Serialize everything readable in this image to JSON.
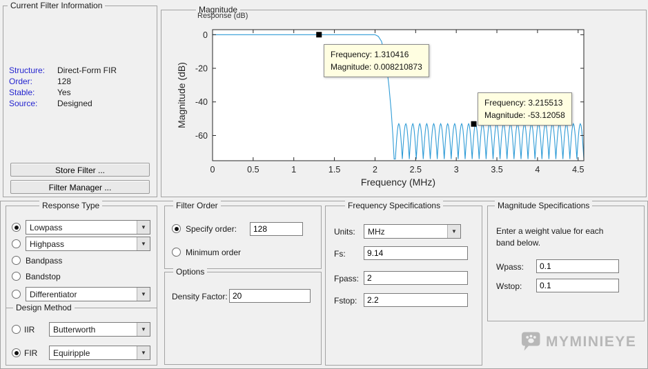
{
  "info_panel": {
    "title": "Current Filter Information",
    "rows": [
      {
        "label": "Structure:",
        "value": "Direct-Form FIR"
      },
      {
        "label": "Order:",
        "value": "128"
      },
      {
        "label": "Stable:",
        "value": "Yes"
      },
      {
        "label": "Source:",
        "value": "Designed"
      }
    ],
    "store_button": "Store Filter ...",
    "manager_button": "Filter Manager ..."
  },
  "chart_panel": {
    "legend": "Magnitude",
    "subtitle": "Response (dB)"
  },
  "chart_data": {
    "type": "line",
    "title": "Magnitude Response (dB)",
    "xlabel": "Frequency (MHz)",
    "ylabel": "Magnitude (dB)",
    "xlim": [
      0,
      4.57
    ],
    "ylim": [
      -75,
      3
    ],
    "xticks": [
      0,
      0.5,
      1,
      1.5,
      2,
      2.5,
      3,
      3.5,
      4,
      4.5
    ],
    "xtick_labels": [
      "0",
      "0.5",
      "1",
      "1.5",
      "2",
      "2.5",
      "3",
      "3.5",
      "4",
      "4.5"
    ],
    "yticks": [
      0,
      -20,
      -40,
      -60
    ],
    "ytick_labels": [
      "0",
      "-20",
      "-40",
      "-60"
    ],
    "grid": false,
    "line_color": "#2E9BD6",
    "tooltip_bg": "#FFFEE1",
    "response": {
      "passband_db": 0,
      "passband_end": 2.0,
      "transition": [
        [
          2.04,
          -1
        ],
        [
          2.08,
          -4
        ],
        [
          2.11,
          -10
        ],
        [
          2.14,
          -18
        ],
        [
          2.17,
          -30
        ],
        [
          2.2,
          -46
        ],
        [
          2.22,
          -60
        ],
        [
          2.235,
          -74
        ]
      ],
      "stopband_start": 2.25,
      "stopband_peak_db": -53,
      "stopband_null_db": -74,
      "num_lobes": 27
    },
    "markers": [
      {
        "x": 1.310416,
        "y": 0.008210873,
        "tip_line1": "Frequency: 1.310416",
        "tip_line2": "Magnitude: 0.008210873"
      },
      {
        "x": 3.215513,
        "y": -53.12058,
        "tip_line1": "Frequency: 3.215513",
        "tip_line2": "Magnitude: -53.12058"
      }
    ]
  },
  "response_type": {
    "title": "Response Type",
    "lowpass": "Lowpass",
    "highpass": "Highpass",
    "bandpass": "Bandpass",
    "bandstop": "Bandstop",
    "differentiator": "Differentiator",
    "selected": "Lowpass"
  },
  "design_method": {
    "title": "Design Method",
    "iir_label": "IIR",
    "iir_value": "Butterworth",
    "fir_label": "FIR",
    "fir_value": "Equiripple",
    "selected": "FIR"
  },
  "filter_order": {
    "title": "Filter Order",
    "specify_label": "Specify order:",
    "specify_value": "128",
    "minimum_label": "Minimum order",
    "selected": "Specify order"
  },
  "options_panel": {
    "title": "Options",
    "density_label": "Density Factor:",
    "density_value": "20"
  },
  "frequency_specs": {
    "title": "Frequency Specifications",
    "units_label": "Units:",
    "units_value": "MHz",
    "fields": [
      {
        "label": "Fs:",
        "value": "9.14"
      },
      {
        "label": "Fpass:",
        "value": "2"
      },
      {
        "label": "Fstop:",
        "value": "2.2"
      }
    ]
  },
  "magnitude_specs": {
    "title": "Magnitude Specifications",
    "note": "Enter a weight value for each band below.",
    "fields": [
      {
        "label": "Wpass:",
        "value": "0.1"
      },
      {
        "label": "Wstop:",
        "value": "0.1"
      }
    ]
  },
  "watermark": {
    "text": "MYMINIEYE"
  }
}
